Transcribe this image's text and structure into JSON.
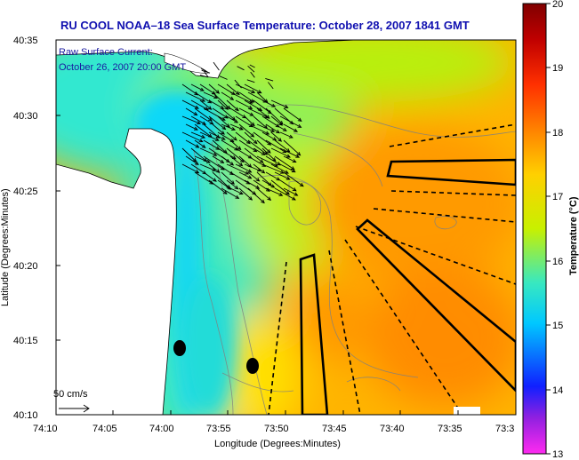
{
  "figure": {
    "title": "RU COOL  NOAA–18  Sea Surface Temperature:  October 28, 2007 1841 GMT",
    "annotation_line1": "Raw Surface Current:",
    "annotation_line2": "October 26, 2007 20:00 GMT",
    "x_axis_label": "Longitude (Degrees:Minutes)",
    "y_axis_label": "Latitude (Degrees:Minutes)",
    "x_ticks": [
      "74:10",
      "74:05",
      "74:00",
      "73:55",
      "73:50",
      "73:45",
      "73:40",
      "73:35",
      "73:3"
    ],
    "y_ticks": [
      "40:35",
      "40:30",
      "40:25",
      "40:20",
      "40:15",
      "40:10"
    ],
    "scale_label": "50 cm/s"
  },
  "colorbar": {
    "label": "Temperature (°C)",
    "ticks": [
      "20",
      "19",
      "18",
      "17",
      "16",
      "15",
      "14",
      "13"
    ],
    "range": [
      13,
      20
    ],
    "colors": [
      "#ff2af0",
      "#9020e0",
      "#1020ff",
      "#00c8ff",
      "#38e8c0",
      "#c8f000",
      "#ffd000",
      "#ff8a00",
      "#ff3000",
      "#c00000",
      "#800000"
    ]
  },
  "land_color": "#ffffff",
  "arrow_color": "#000000",
  "contour_color": "#808080"
}
